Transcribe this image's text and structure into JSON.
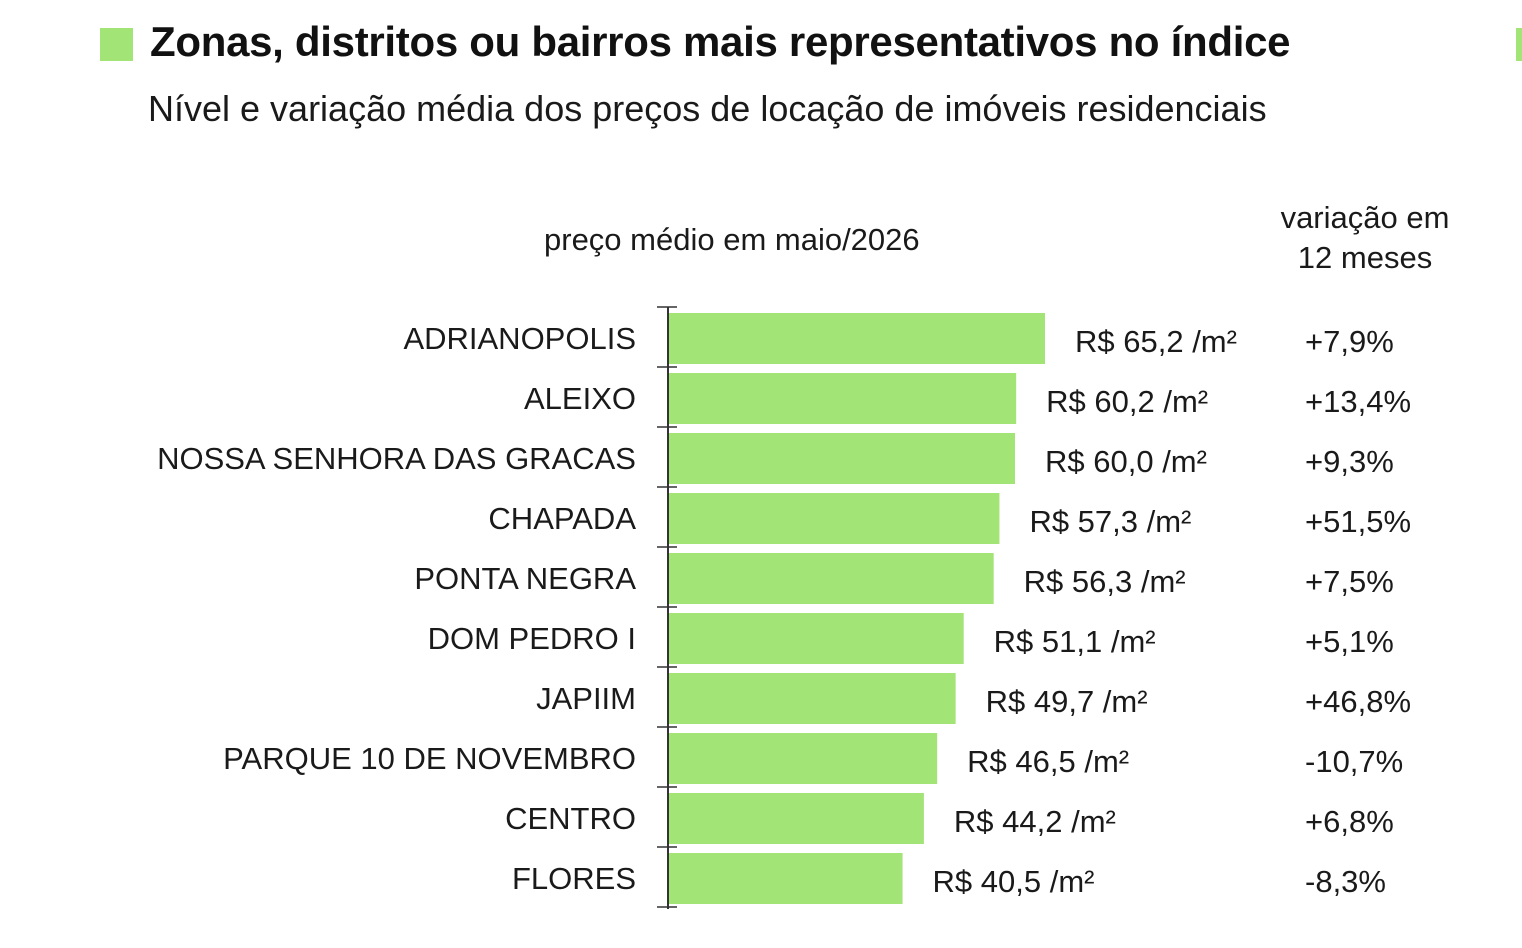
{
  "header": {
    "title": "Zonas, distritos ou bairros mais representativos no índice",
    "subtitle": "Nível e variação média dos preços de locação de imóveis residenciais",
    "price_column_label": "preço médio em maio/2026",
    "variation_column_label_line1": "variação em",
    "variation_column_label_line2": "12 meses"
  },
  "colors": {
    "bar": "#a3e476",
    "text": "#1a1a1a",
    "axis": "#333333"
  },
  "chart_data": {
    "type": "bar",
    "orientation": "horizontal",
    "categories": [
      "ADRIANOPOLIS",
      "ALEIXO",
      "NOSSA SENHORA DAS GRACAS",
      "CHAPADA",
      "PONTA NEGRA",
      "DOM PEDRO I",
      "JAPIIM",
      "PARQUE 10 DE NOVEMBRO",
      "CENTRO",
      "FLORES"
    ],
    "values": [
      65.2,
      60.2,
      60.0,
      57.3,
      56.3,
      51.1,
      49.7,
      46.5,
      44.2,
      40.5
    ],
    "value_labels": [
      "R$ 65,2 /m²",
      "R$ 60,2 /m²",
      "R$ 60,0 /m²",
      "R$ 57,3 /m²",
      "R$ 56,3 /m²",
      "R$ 51,1 /m²",
      "R$ 49,7 /m²",
      "R$ 46,5 /m²",
      "R$ 44,2 /m²",
      "R$ 40,5 /m²"
    ],
    "variation_labels": [
      "+7,9%",
      "+13,4%",
      "+9,3%",
      "+51,5%",
      "+7,5%",
      "+5,1%",
      "+46,8%",
      "-10,7%",
      "+6,8%",
      "-8,3%"
    ],
    "xlim": [
      0,
      65.2
    ],
    "grid": false,
    "legend": "none"
  }
}
